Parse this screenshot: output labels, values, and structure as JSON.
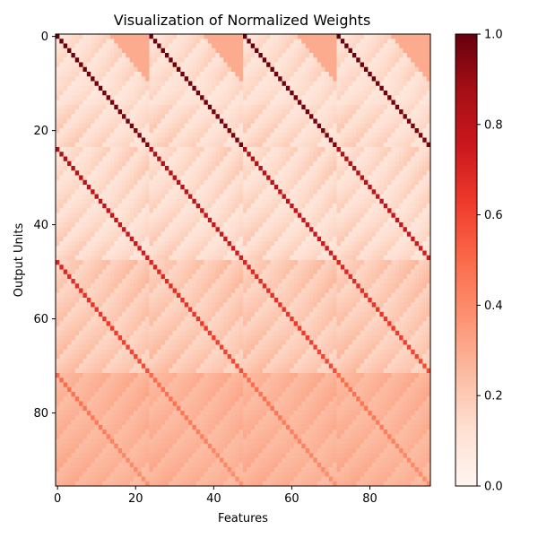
{
  "chart_data": {
    "type": "heatmap",
    "title": "Visualization of Normalized Weights",
    "xlabel": "Features",
    "ylabel": "Output Units",
    "rows": 96,
    "cols": 96,
    "xlim": [
      -0.5,
      95.5
    ],
    "ylim": [
      95.5,
      -0.5
    ],
    "xticks": [
      0,
      20,
      40,
      60,
      80
    ],
    "yticks": [
      0,
      20,
      40,
      60,
      80
    ],
    "colormap": "Reds",
    "colorbar": {
      "range": [
        0.0,
        1.0
      ],
      "ticks": [
        "0.0",
        "0.2",
        "0.4",
        "0.6",
        "0.8",
        "1.0"
      ]
    },
    "block_size": 24,
    "pattern": {
      "peak_diagonal": 1.0,
      "row_band_diagonal_peak": [
        1.0,
        0.85,
        0.7,
        0.5
      ],
      "row_band_background_low": [
        0.05,
        0.05,
        0.12,
        0.22
      ],
      "row_band_background_high": [
        0.22,
        0.22,
        0.27,
        0.32
      ],
      "upper_right_block_corner_value": 0.3
    },
    "colors": {
      "low": "#fff5f0",
      "high": "#67000d"
    }
  }
}
